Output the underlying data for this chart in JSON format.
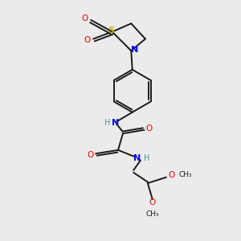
{
  "background_color": "#ebebeb",
  "bond_color": "#1a1a1a",
  "atom_colors": {
    "S": "#ccaa00",
    "N": "#0000ee",
    "O": "#ee0000",
    "H": "#4a9090",
    "C": "#1a1a1a"
  }
}
